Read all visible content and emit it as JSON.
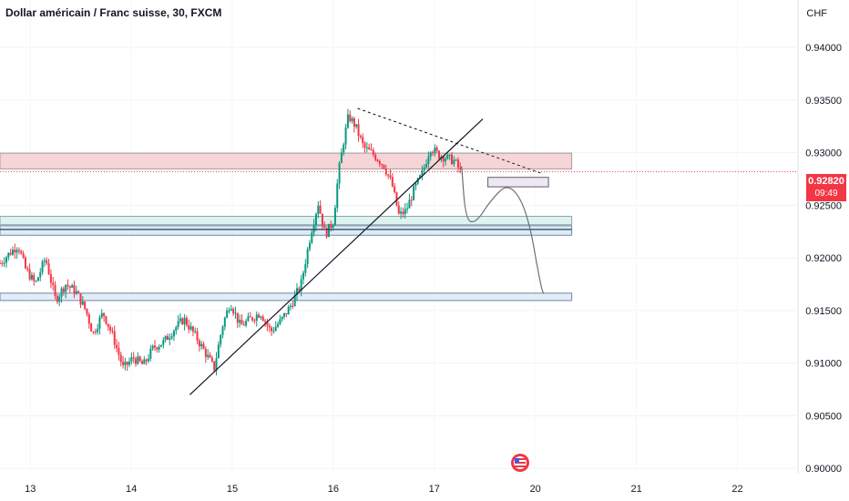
{
  "header": {
    "title": "Dollar américain / Franc suisse, 30, FXCM",
    "currency": "CHF"
  },
  "price_badge": {
    "price": "0.92820",
    "countdown": "09:49",
    "color": "#f23645"
  },
  "chart_data": {
    "type": "candlestick",
    "title": "Dollar américain / Franc suisse, 30, FXCM",
    "y_axis_unit": "CHF",
    "y_ticks": [
      "0.94000",
      "0.93500",
      "0.93000",
      "0.92500",
      "0.92000",
      "0.91500",
      "0.91000",
      "0.90500",
      "0.90000"
    ],
    "y_tick_values": [
      0.94,
      0.935,
      0.93,
      0.925,
      0.92,
      0.915,
      0.91,
      0.905,
      0.9
    ],
    "x_ticks": [
      "13",
      "14",
      "15",
      "16",
      "17",
      "20",
      "21",
      "22"
    ],
    "x_tick_positions": [
      0,
      1,
      2,
      3,
      4,
      5,
      6,
      7
    ],
    "ylim": [
      0.8995,
      0.9445
    ],
    "xlim": [
      -0.3,
      7.6
    ],
    "last_price": 0.9282,
    "up_color": "#089981",
    "down_color": "#f23645",
    "price_path": [
      [
        -0.3,
        0.9195
      ],
      [
        -0.2,
        0.9205
      ],
      [
        -0.12,
        0.9212
      ],
      [
        -0.05,
        0.919
      ],
      [
        0.05,
        0.9175
      ],
      [
        0.15,
        0.92
      ],
      [
        0.25,
        0.916
      ],
      [
        0.35,
        0.9175
      ],
      [
        0.45,
        0.9168
      ],
      [
        0.55,
        0.915
      ],
      [
        0.62,
        0.9128
      ],
      [
        0.72,
        0.9148
      ],
      [
        0.82,
        0.9125
      ],
      [
        0.92,
        0.9095
      ],
      [
        1.02,
        0.9105
      ],
      [
        1.12,
        0.9098
      ],
      [
        1.22,
        0.9115
      ],
      [
        1.32,
        0.912
      ],
      [
        1.42,
        0.9132
      ],
      [
        1.52,
        0.9142
      ],
      [
        1.62,
        0.9128
      ],
      [
        1.72,
        0.9112
      ],
      [
        1.82,
        0.9095
      ],
      [
        1.9,
        0.9135
      ],
      [
        1.98,
        0.9158
      ],
      [
        2.08,
        0.9135
      ],
      [
        2.18,
        0.9142
      ],
      [
        2.28,
        0.9148
      ],
      [
        2.38,
        0.913
      ],
      [
        2.48,
        0.914
      ],
      [
        2.58,
        0.9155
      ],
      [
        2.68,
        0.9175
      ],
      [
        2.78,
        0.9225
      ],
      [
        2.85,
        0.9252
      ],
      [
        2.92,
        0.9222
      ],
      [
        3.0,
        0.9235
      ],
      [
        3.05,
        0.928
      ],
      [
        3.1,
        0.931
      ],
      [
        3.15,
        0.9335
      ],
      [
        3.22,
        0.9325
      ],
      [
        3.3,
        0.9305
      ],
      [
        3.4,
        0.9298
      ],
      [
        3.5,
        0.9288
      ],
      [
        3.58,
        0.927
      ],
      [
        3.65,
        0.924
      ],
      [
        3.72,
        0.9245
      ],
      [
        3.8,
        0.9265
      ],
      [
        3.88,
        0.928
      ],
      [
        3.96,
        0.9305
      ],
      [
        4.04,
        0.9298
      ],
      [
        4.12,
        0.9295
      ],
      [
        4.2,
        0.9292
      ],
      [
        4.27,
        0.928
      ]
    ],
    "zones": [
      {
        "name": "resistance-zone",
        "y0": 0.92845,
        "y1": 0.92995,
        "x0": -0.3,
        "x1": 5.36,
        "fill": "#f7d4d7",
        "stroke": "#a0a0a0"
      },
      {
        "name": "target-box",
        "y0": 0.92675,
        "y1": 0.92765,
        "x0": 4.53,
        "x1": 5.13,
        "fill": "#ede7f6",
        "stroke": "#606060"
      },
      {
        "name": "support-zone-1",
        "y0": 0.92315,
        "y1": 0.92395,
        "x0": -0.3,
        "x1": 5.36,
        "fill": "#def2ef",
        "stroke": "#8aa8a2"
      },
      {
        "name": "support-zone-2",
        "y0": 0.92215,
        "y1": 0.92305,
        "x0": -0.3,
        "x1": 5.36,
        "fill": "#ddeaf7",
        "stroke": "#6f8aa6"
      },
      {
        "name": "support-zone-3",
        "y0": 0.91595,
        "y1": 0.91665,
        "x0": -0.3,
        "x1": 5.36,
        "fill": "#e3ecf7",
        "stroke": "#6f8aa6"
      }
    ],
    "drawings": {
      "trendline": [
        [
          1.58,
          0.907
        ],
        [
          4.48,
          0.9332
        ]
      ],
      "dashed_line": [
        [
          3.24,
          0.9342
        ],
        [
          5.07,
          0.928
        ]
      ],
      "horizontal_line": {
        "y": 0.9227,
        "x0": -0.3,
        "x1": 5.36
      },
      "projection": [
        [
          4.27,
          0.9287
        ],
        [
          4.31,
          0.9236
        ],
        [
          4.41,
          0.9233
        ],
        [
          4.56,
          0.9255
        ],
        [
          4.74,
          0.9272
        ],
        [
          4.92,
          0.9245
        ],
        [
          5.05,
          0.9175
        ],
        [
          5.08,
          0.9166
        ]
      ]
    },
    "grid": true
  }
}
